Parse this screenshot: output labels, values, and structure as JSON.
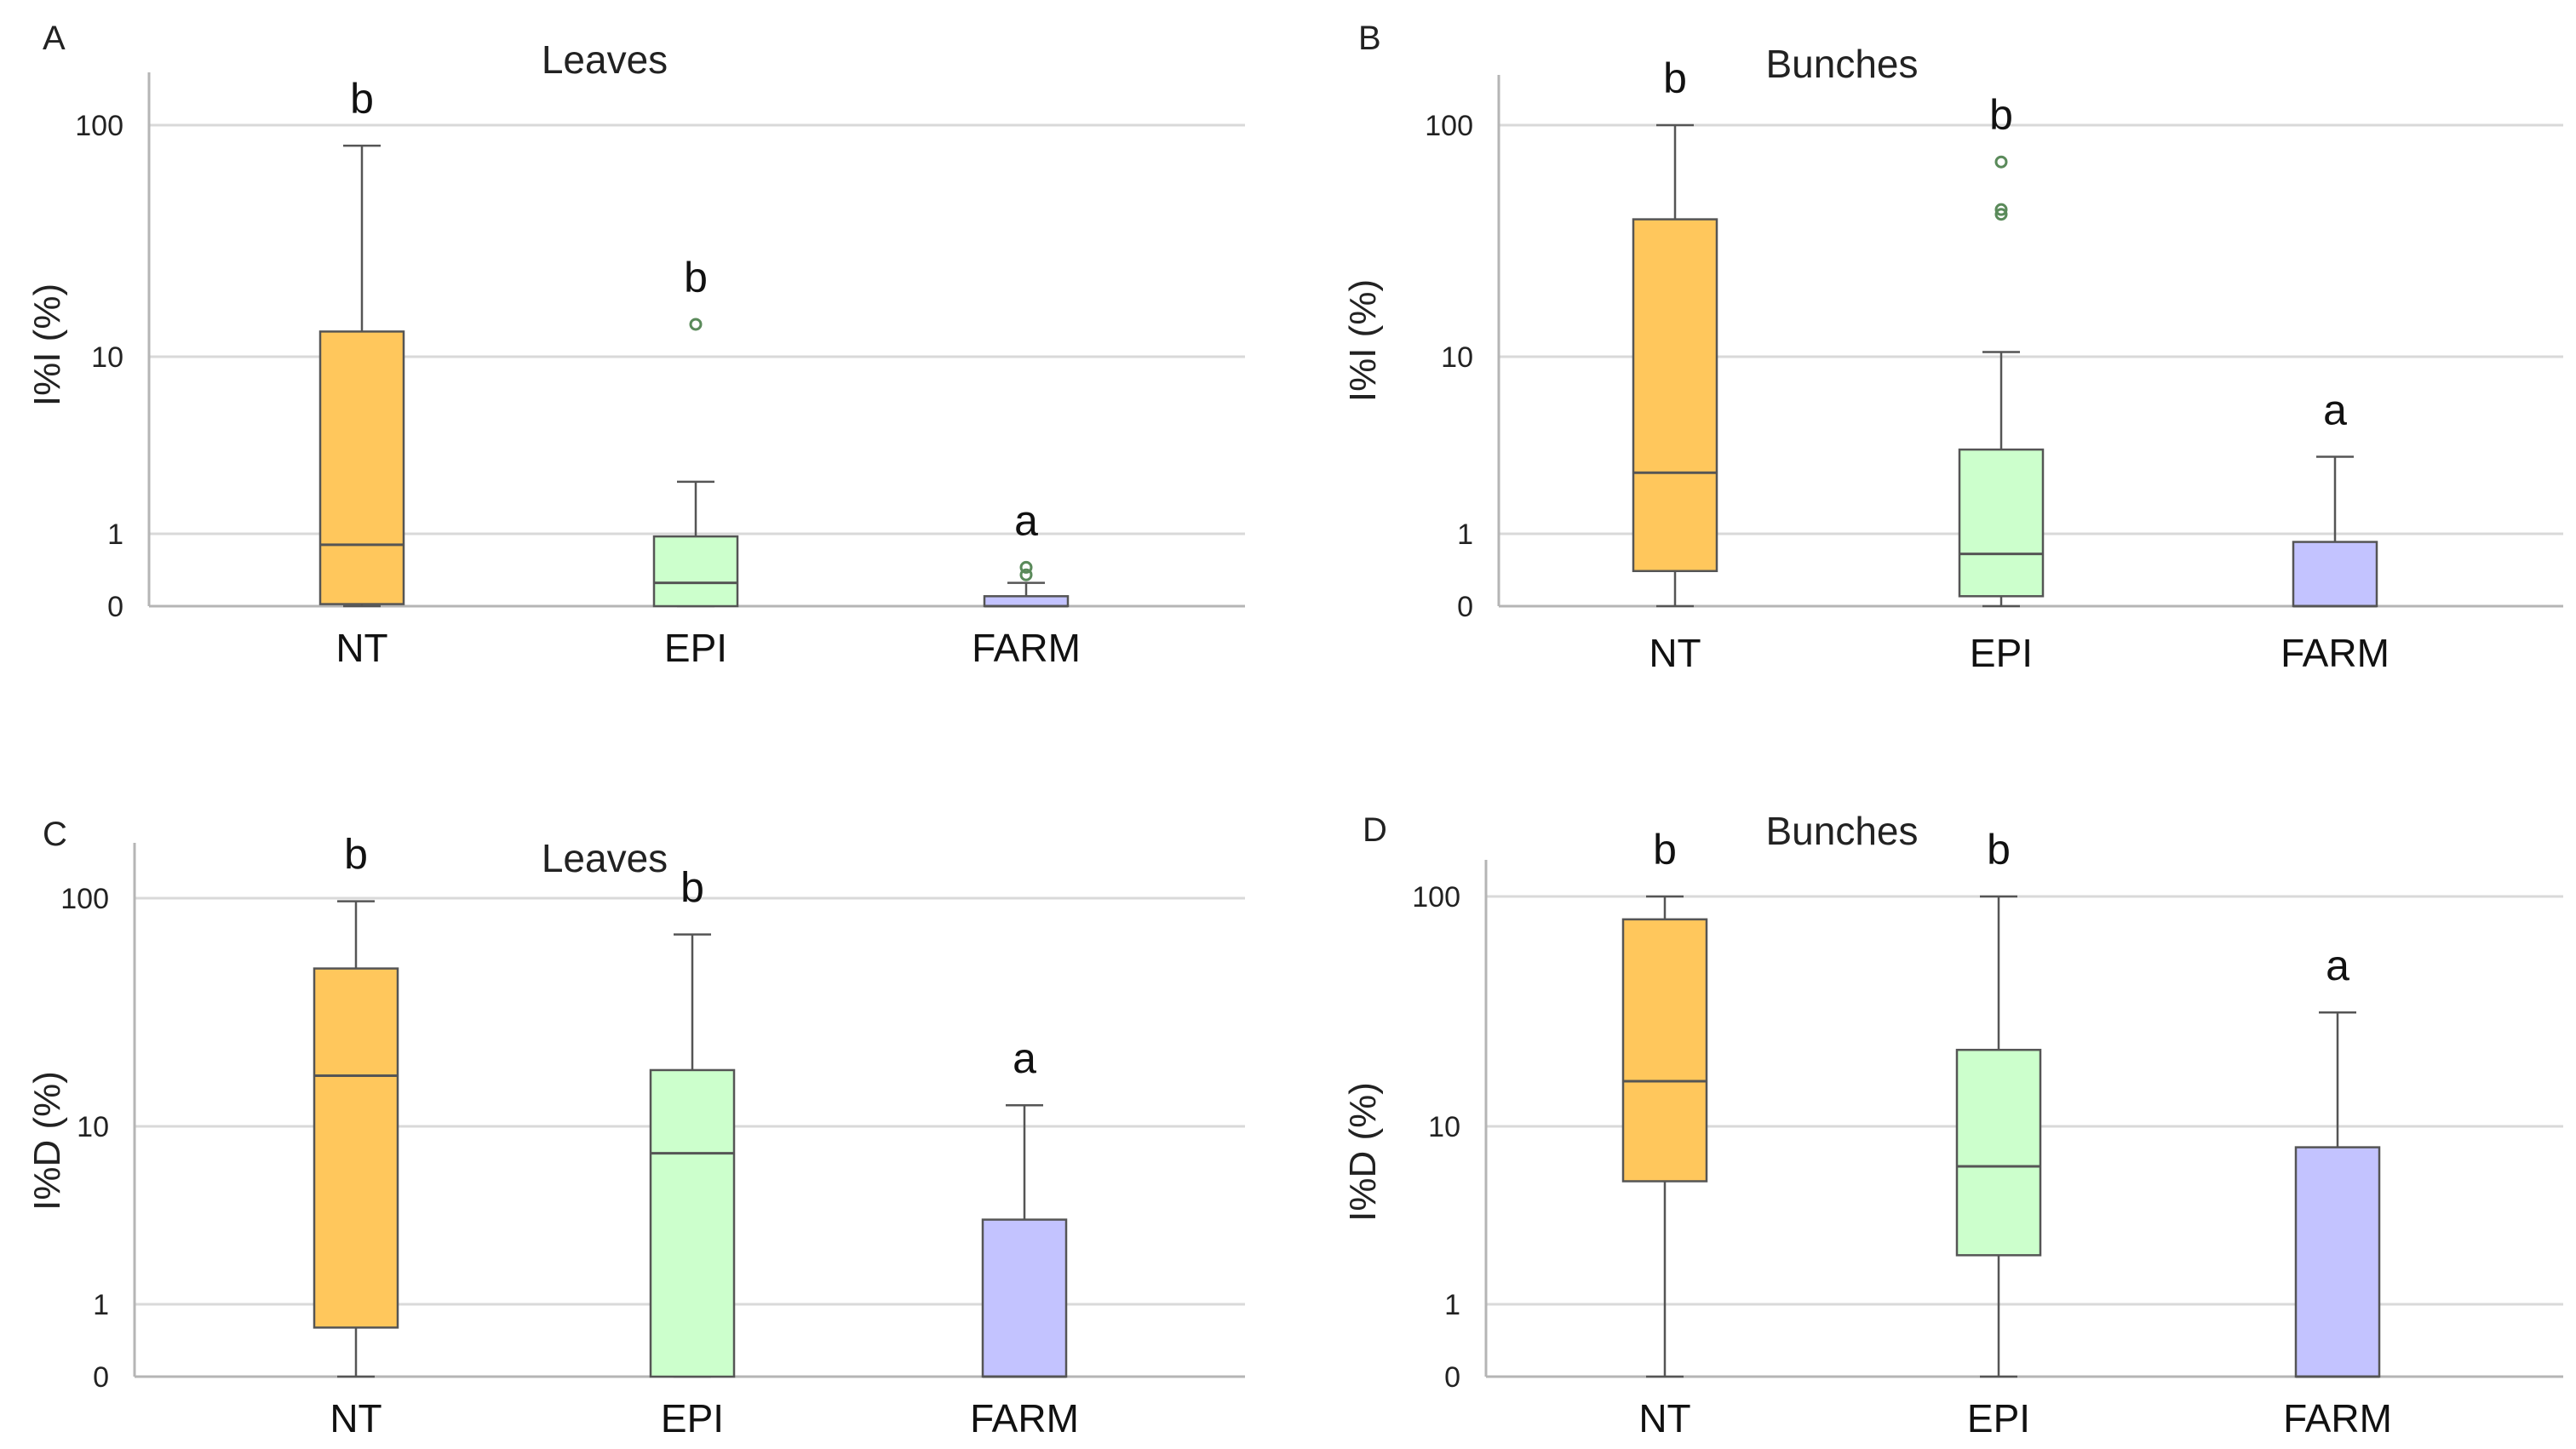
{
  "colors": {
    "NT": "#FFC75C",
    "EPI": "#CCFFCC",
    "FARM": "#C3C3FF",
    "outlier": "#5a8a5a"
  },
  "chart_data": [
    {
      "panel": "A",
      "title": "Leaves",
      "type": "box",
      "ylabel": "I%I (%)",
      "yscale": "log1p",
      "yticks": [
        0,
        1,
        10,
        100
      ],
      "categories": [
        "NT",
        "EPI",
        "FARM"
      ],
      "boxes": [
        {
          "category": "NT",
          "whisker_low": 0,
          "q1": 0.02,
          "median": 0.8,
          "q3": 13,
          "whisker_high": 82,
          "outliers": [],
          "letter": "b"
        },
        {
          "category": "EPI",
          "whisker_low": 0,
          "q1": 0,
          "median": 0.25,
          "q3": 0.95,
          "whisker_high": 2.3,
          "outliers": [
            14
          ],
          "letter": "b"
        },
        {
          "category": "FARM",
          "whisker_low": 0,
          "q1": 0,
          "median": 0,
          "q3": 0.1,
          "whisker_high": 0.25,
          "outliers": [
            0.35,
            0.45
          ],
          "letter": "a"
        }
      ]
    },
    {
      "panel": "B",
      "title": "Bunches",
      "type": "box",
      "ylabel": "I%I (%)",
      "yscale": "log1p",
      "yticks": [
        0,
        1,
        10,
        100
      ],
      "categories": [
        "NT",
        "EPI",
        "FARM"
      ],
      "boxes": [
        {
          "category": "NT",
          "whisker_low": 0,
          "q1": 0.4,
          "median": 2.6,
          "q3": 40,
          "whisker_high": 100,
          "outliers": [],
          "letter": "b"
        },
        {
          "category": "EPI",
          "whisker_low": 0,
          "q1": 0.1,
          "median": 0.65,
          "q3": 3.5,
          "whisker_high": 10.5,
          "outliers": [
            42,
            44,
            70
          ],
          "letter": "b"
        },
        {
          "category": "FARM",
          "whisker_low": 0,
          "q1": 0,
          "median": 0,
          "q3": 0.85,
          "whisker_high": 3.2,
          "outliers": [],
          "letter": "a"
        }
      ]
    },
    {
      "panel": "C",
      "title": "Leaves",
      "type": "box",
      "ylabel": "I%D (%)",
      "yscale": "log1p",
      "yticks": [
        0,
        1,
        10,
        100
      ],
      "categories": [
        "NT",
        "EPI",
        "FARM"
      ],
      "boxes": [
        {
          "category": "NT",
          "whisker_low": 0,
          "q1": 0.6,
          "median": 17,
          "q3": 50,
          "whisker_high": 97,
          "outliers": [],
          "letter": "b"
        },
        {
          "category": "EPI",
          "whisker_low": 0,
          "q1": 0,
          "median": 7.5,
          "q3": 18,
          "whisker_high": 70,
          "outliers": [],
          "letter": "b"
        },
        {
          "category": "FARM",
          "whisker_low": 0,
          "q1": 0,
          "median": 0,
          "q3": 3.5,
          "whisker_high": 12.5,
          "outliers": [],
          "letter": "a"
        }
      ]
    },
    {
      "panel": "D",
      "title": "Bunches",
      "type": "box",
      "ylabel": "I%D (%)",
      "yscale": "log1p",
      "yticks": [
        0,
        1,
        10,
        100
      ],
      "categories": [
        "NT",
        "EPI",
        "FARM"
      ],
      "boxes": [
        {
          "category": "NT",
          "whisker_low": 0,
          "q1": 5.5,
          "median": 16,
          "q3": 80,
          "whisker_high": 100,
          "outliers": [],
          "letter": "b"
        },
        {
          "category": "EPI",
          "whisker_low": 0,
          "q1": 2.2,
          "median": 6.5,
          "q3": 22,
          "whisker_high": 100,
          "outliers": [],
          "letter": "b"
        },
        {
          "category": "FARM",
          "whisker_low": 0,
          "q1": 0,
          "median": 0,
          "q3": 8,
          "whisker_high": 32,
          "outliers": [],
          "letter": "a"
        }
      ]
    }
  ]
}
